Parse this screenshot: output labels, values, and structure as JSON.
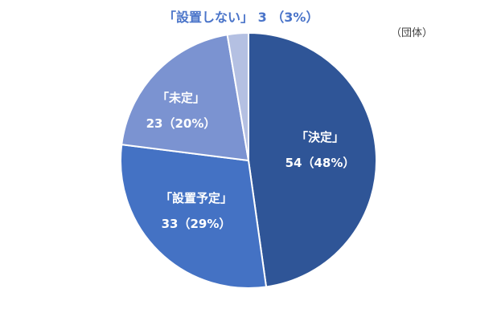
{
  "unit_label": "（団体）",
  "chart_data": {
    "type": "pie",
    "slices": [
      {
        "label": "「決定」",
        "value": 54,
        "percent": "48%",
        "value_text": "54（48%）",
        "color": "#2f5597"
      },
      {
        "label": "「設置予定」",
        "value": 33,
        "percent": "29%",
        "value_text": "33（29%）",
        "color": "#4472c4"
      },
      {
        "label": "「未定」",
        "value": 23,
        "percent": "20%",
        "value_text": "23（20%）",
        "color": "#7b93d1"
      },
      {
        "label": "「設置しない」",
        "value": 3,
        "percent": "3%",
        "value_text": "3 （3%）",
        "color": "#b4c0e2"
      }
    ],
    "outside_label": "「設置しない」 3 （3%）",
    "legend": "none"
  }
}
